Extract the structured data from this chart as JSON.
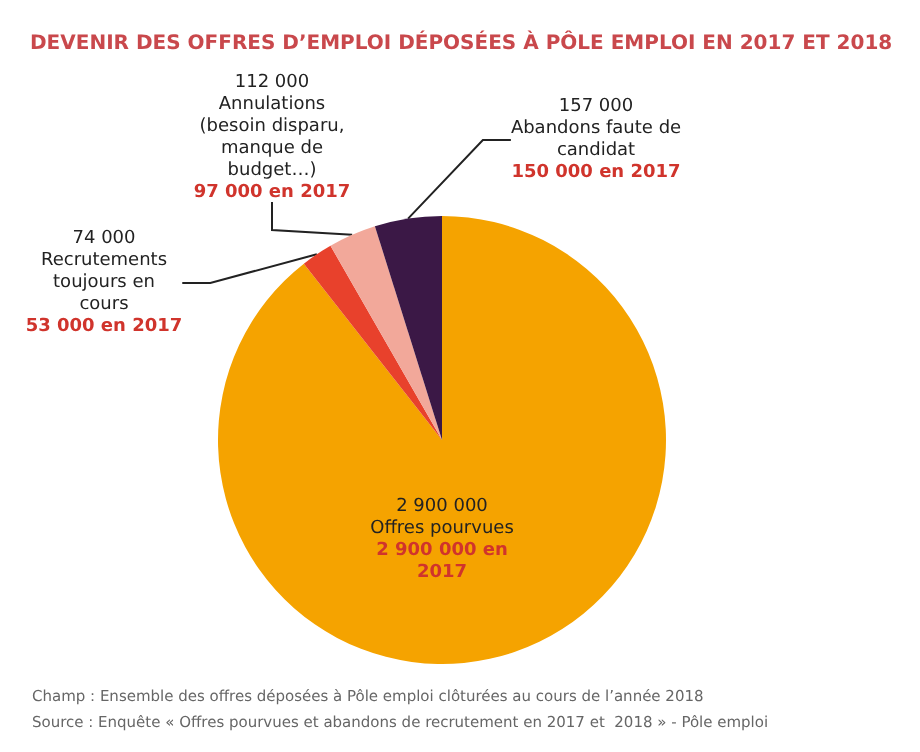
{
  "chart_data": {
    "type": "pie",
    "title": "DEVENIR DES OFFRES D’EMPLOI DÉPOSÉES À PÔLE EMPLOI EN 2017 ET 2018",
    "categories": [
      "Offres pourvues",
      "Recrutements toujours en cours",
      "Annulations (besoin disparu, manque de budget…)",
      "Abandons faute de candidat"
    ],
    "values": [
      2900000,
      74000,
      112000,
      157000
    ],
    "value_labels": [
      "2 900 000",
      "74 000",
      "112 000",
      "157 000"
    ],
    "colors": [
      "#f5a300",
      "#e8412c",
      "#f2a89a",
      "#3b1846"
    ],
    "legend": false,
    "annotations": [
      {
        "text": "2 900 000 en 2017",
        "x": "Offres pourvues"
      },
      {
        "text": "53 000 en 2017",
        "x": "Recrutements toujours en cours"
      },
      {
        "text": "97 000 en 2017",
        "x": "Annulations (besoin disparu, manque de budget…)"
      },
      {
        "text": "150 000 en 2017",
        "x": "Abandons faute de candidat"
      },
      "Champ : Ensemble des offres déposées à Pôle emploi clôturées au cours de l’année 2018",
      "Source : Enquête « Offres pourvues et abandons de recrutement en 2017 et  2018 » - Pôle emploi"
    ]
  }
}
